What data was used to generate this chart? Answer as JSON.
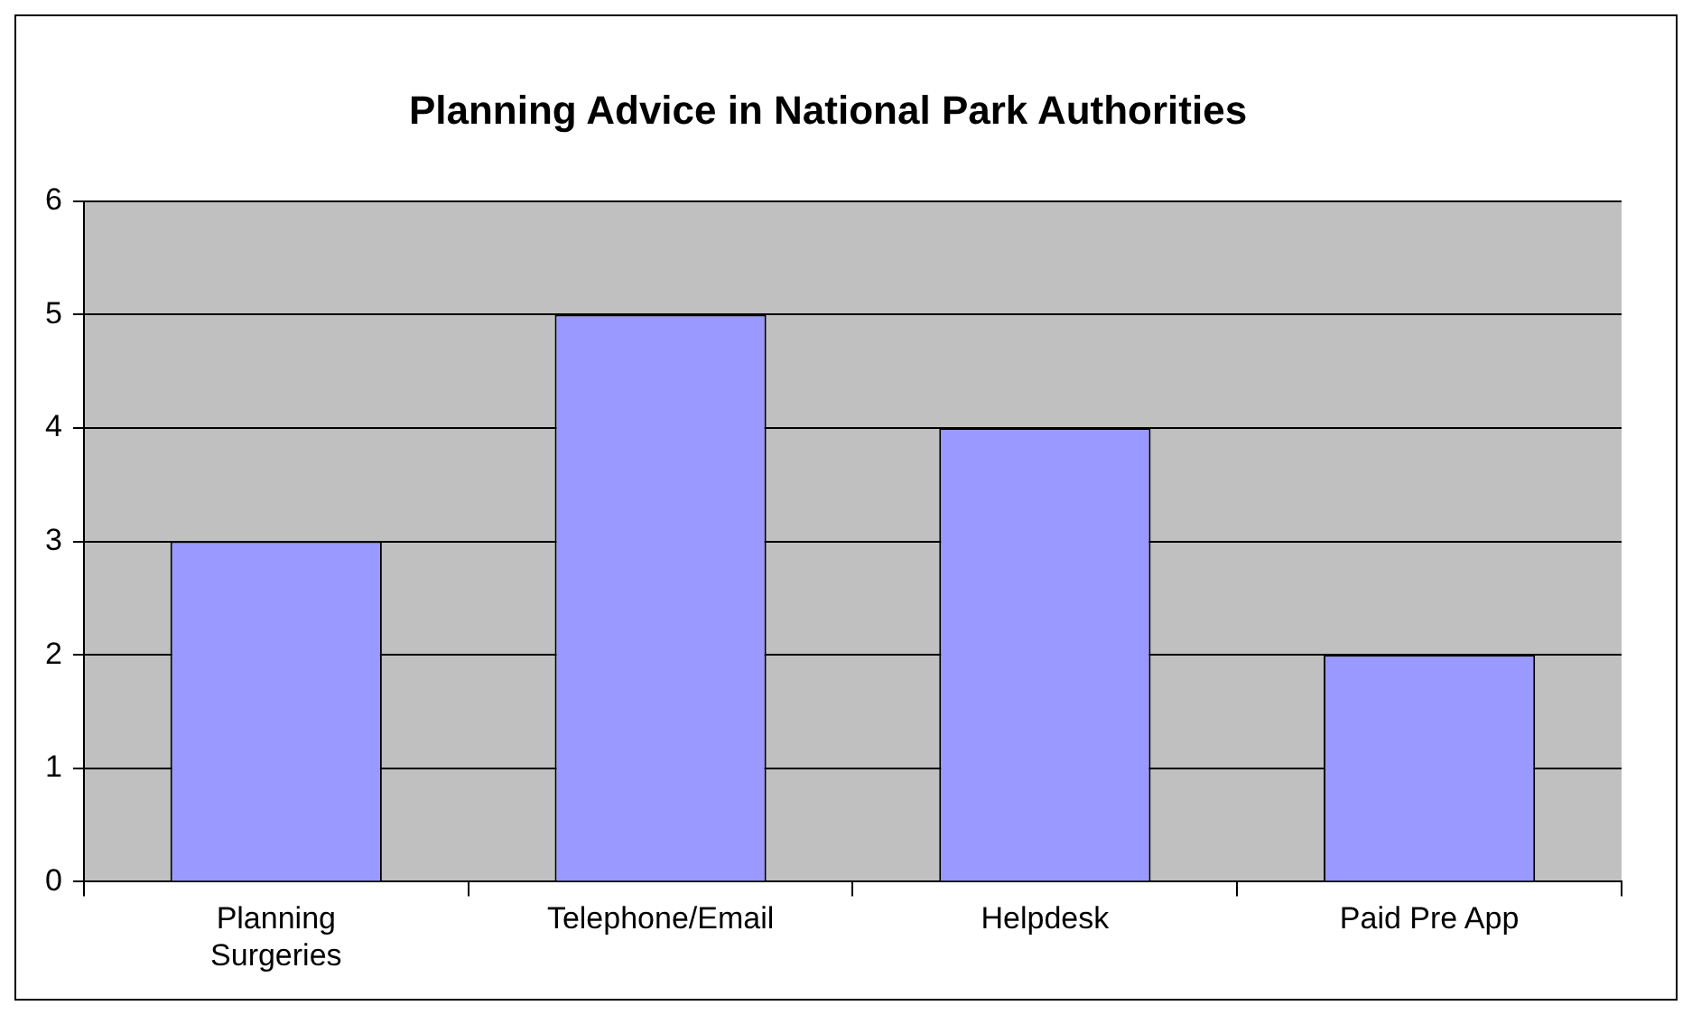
{
  "chart_data": {
    "type": "bar",
    "title": "Planning Advice in National Park Authorities",
    "categories": [
      "Planning Surgeries",
      "Telephone/Email",
      "Helpdesk",
      "Paid Pre App"
    ],
    "values": [
      3,
      5,
      4,
      2
    ],
    "color": "#9999ff",
    "ylim": [
      0,
      6
    ],
    "yticks": [
      0,
      1,
      2,
      3,
      4,
      5,
      6
    ],
    "grid": "y",
    "legend": false
  }
}
